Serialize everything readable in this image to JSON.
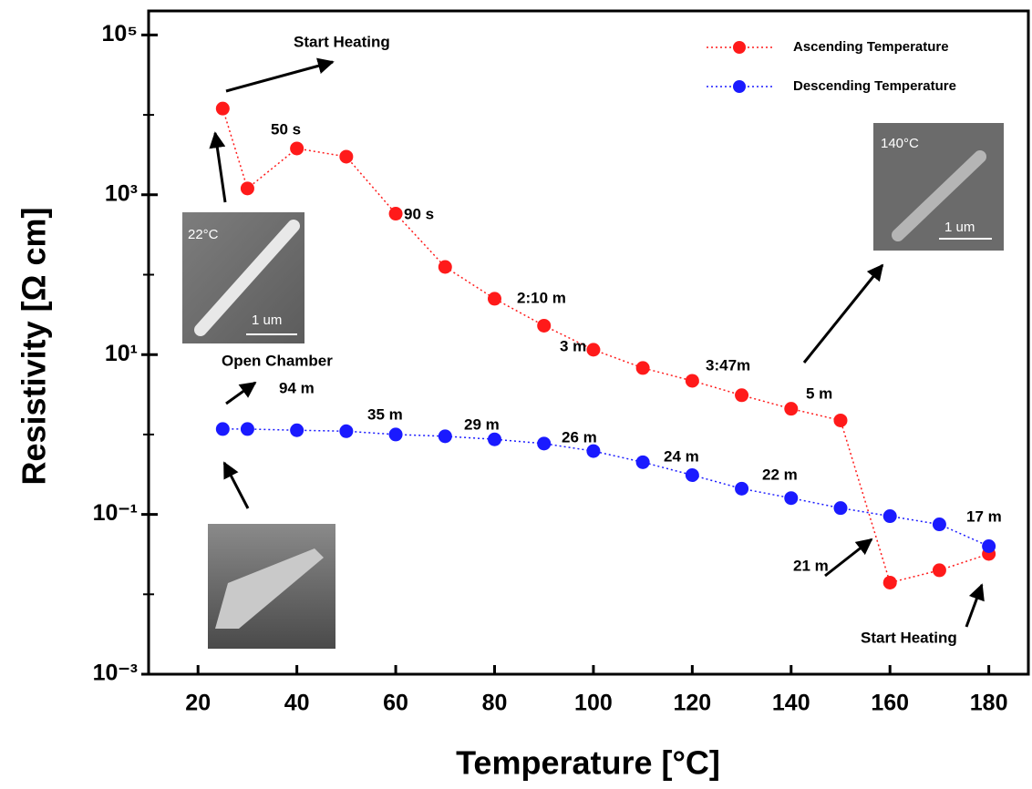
{
  "chart_data": {
    "type": "line",
    "xlabel": "Temperature [°C]",
    "ylabel": "Resistivity [Ω cm]",
    "log_y": true,
    "xlim": [
      10,
      188
    ],
    "ylim": [
      0.001,
      200000
    ],
    "xticks": [
      20,
      40,
      60,
      80,
      100,
      120,
      140,
      160,
      180
    ],
    "yticks": [
      {
        "value": 100000,
        "label": "10⁵"
      },
      {
        "value": 1000,
        "label": "10³"
      },
      {
        "value": 10,
        "label": "10¹"
      },
      {
        "value": 0.1,
        "label": "10⁻¹"
      },
      {
        "value": 0.001,
        "label": "10⁻³"
      }
    ],
    "yminor_ticks": [
      10000,
      100,
      1,
      0.01
    ],
    "legend": "upper right",
    "series": [
      {
        "name": "Ascending Temperature",
        "color": "#ff1a1a",
        "x": [
          25,
          30,
          40,
          50,
          60,
          70,
          80,
          90,
          100,
          110,
          120,
          130,
          140,
          150,
          160,
          170,
          180
        ],
        "values": [
          12000,
          1200,
          3800,
          3000,
          580,
          125,
          50,
          23,
          11.5,
          6.8,
          4.7,
          3.1,
          2.1,
          1.5,
          0.014,
          0.02,
          0.032
        ]
      },
      {
        "name": "Descending Temperature",
        "color": "#1a1aff",
        "x": [
          25,
          30,
          40,
          50,
          60,
          70,
          80,
          90,
          100,
          110,
          120,
          130,
          140,
          150,
          160,
          170,
          180
        ],
        "values": [
          1.17,
          1.17,
          1.13,
          1.1,
          1.0,
          0.95,
          0.87,
          0.77,
          0.62,
          0.45,
          0.31,
          0.21,
          0.16,
          0.12,
          0.095,
          0.075,
          0.04
        ]
      }
    ],
    "annotations": [
      "Start Heating",
      "50 s",
      "90 s",
      "2:10 m",
      "3 m",
      "3:47m",
      "5 m",
      "Open Chamber",
      "94 m",
      "35 m",
      "29 m",
      "26 m",
      "24 m",
      "22 m",
      "17 m",
      "21 m",
      "Start Heating"
    ],
    "insets": [
      {
        "label": "22°C",
        "scale": "1 um"
      },
      {
        "label": "140°C",
        "scale": "1 um"
      }
    ]
  }
}
